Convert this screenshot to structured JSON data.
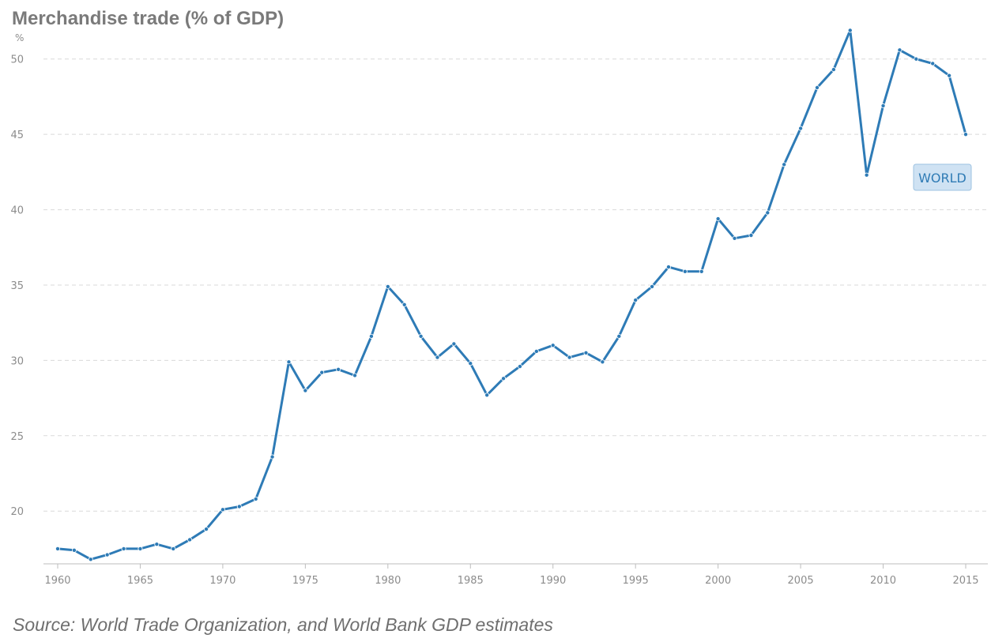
{
  "title": "Merchandise trade (% of GDP)",
  "source": "Source: World Trade Organization, and World Bank GDP estimates",
  "chart_data": {
    "type": "line",
    "ylabel": "%",
    "series_label": "WORLD",
    "series_color": "#2e7bb6",
    "grid_color": "#d9d9d9",
    "label_bg": "#cfe2f3",
    "ylim": [
      16.5,
      53
    ],
    "xlim": [
      1960,
      2015
    ],
    "yticks": [
      20,
      25,
      30,
      35,
      40,
      45,
      50
    ],
    "xticks": [
      1960,
      1965,
      1970,
      1975,
      1980,
      1985,
      1990,
      1995,
      2000,
      2005,
      2010,
      2015
    ],
    "x": [
      1960,
      1961,
      1962,
      1963,
      1964,
      1965,
      1966,
      1967,
      1968,
      1969,
      1970,
      1971,
      1972,
      1973,
      1974,
      1975,
      1976,
      1977,
      1978,
      1979,
      1980,
      1981,
      1982,
      1983,
      1984,
      1985,
      1986,
      1987,
      1988,
      1989,
      1990,
      1991,
      1992,
      1993,
      1994,
      1995,
      1996,
      1997,
      1998,
      1999,
      2000,
      2001,
      2002,
      2003,
      2004,
      2005,
      2006,
      2007,
      2008,
      2009,
      2010,
      2011,
      2012,
      2013,
      2014,
      2015
    ],
    "values": [
      17.5,
      17.4,
      16.8,
      17.1,
      17.5,
      17.5,
      17.8,
      17.5,
      18.1,
      18.8,
      20.1,
      20.3,
      20.8,
      23.6,
      29.9,
      28.0,
      29.2,
      29.4,
      29.0,
      31.6,
      34.9,
      33.7,
      31.6,
      30.2,
      31.1,
      29.8,
      27.7,
      28.8,
      29.6,
      30.6,
      31.0,
      30.2,
      30.5,
      29.9,
      31.6,
      34.0,
      34.9,
      36.2,
      35.9,
      35.9,
      39.4,
      38.1,
      38.3,
      39.8,
      43.0,
      45.4,
      48.1,
      49.3,
      51.9,
      42.3,
      46.9,
      50.6,
      50.0,
      49.7,
      48.9,
      45.0
    ]
  }
}
